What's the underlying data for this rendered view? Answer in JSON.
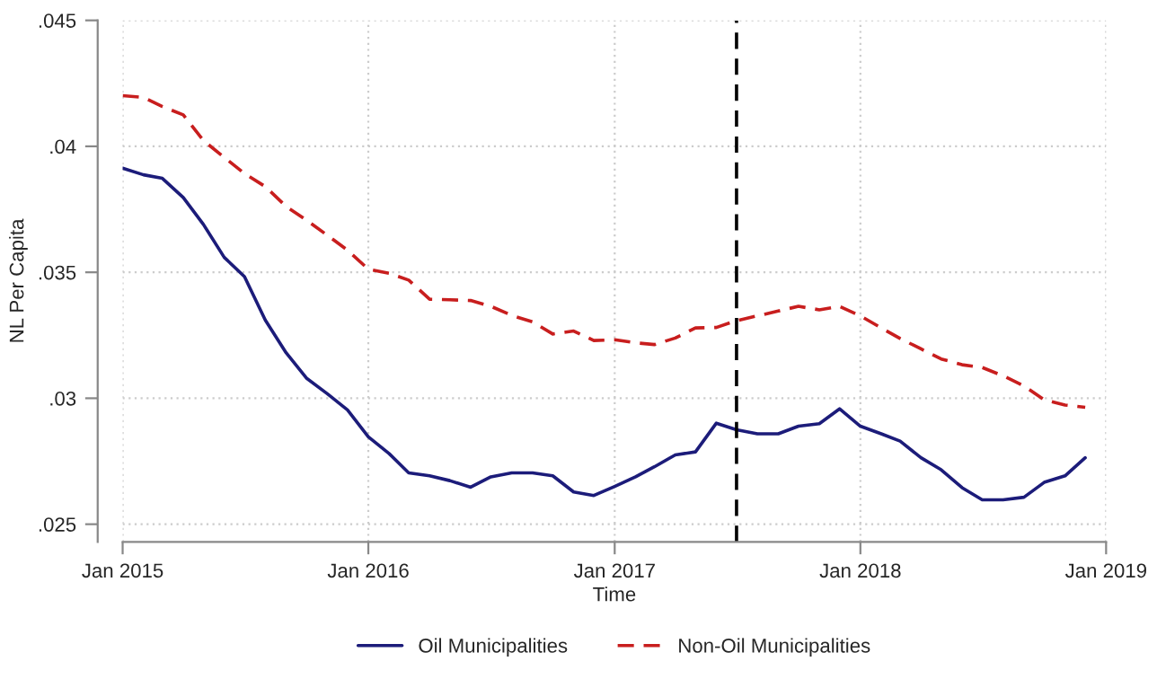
{
  "chart_data": {
    "type": "line",
    "xlabel": "Time",
    "ylabel": "NL Per Capita",
    "x": [
      "2015-01",
      "2015-02",
      "2015-03",
      "2015-04",
      "2015-05",
      "2015-06",
      "2015-07",
      "2015-08",
      "2015-09",
      "2015-10",
      "2015-11",
      "2015-12",
      "2016-01",
      "2016-02",
      "2016-03",
      "2016-04",
      "2016-05",
      "2016-06",
      "2016-07",
      "2016-08",
      "2016-09",
      "2016-10",
      "2016-11",
      "2016-12",
      "2017-01",
      "2017-02",
      "2017-03",
      "2017-04",
      "2017-05",
      "2017-06",
      "2017-07",
      "2017-08",
      "2017-09",
      "2017-10",
      "2017-11",
      "2017-12",
      "2018-01",
      "2018-02",
      "2018-03",
      "2018-04",
      "2018-05",
      "2018-06",
      "2018-07",
      "2018-08",
      "2018-09",
      "2018-10",
      "2018-11",
      "2018-12"
    ],
    "series": [
      {
        "name": "Oil Municipalities",
        "color": "#1c1c7a",
        "line_style": "solid",
        "values": [
          0.03913,
          0.03887,
          0.03873,
          0.03797,
          0.0369,
          0.03559,
          0.03483,
          0.0331,
          0.0318,
          0.0308,
          0.03018,
          0.02954,
          0.02847,
          0.0278,
          0.02704,
          0.02692,
          0.02673,
          0.02647,
          0.02688,
          0.02704,
          0.02704,
          0.02692,
          0.02628,
          0.02614,
          0.0265,
          0.02688,
          0.02728,
          0.02775,
          0.02787,
          0.02901,
          0.02875,
          0.02859,
          0.02859,
          0.02889,
          0.02899,
          0.02958,
          0.02889,
          0.02859,
          0.0283,
          0.02764,
          0.02716,
          0.02645,
          0.02597,
          0.02597,
          0.02607,
          0.02666,
          0.02692,
          0.02764
        ]
      },
      {
        "name": "Non-Oil Municipalities",
        "color": "#c81e1e",
        "line_style": "dashed",
        "values": [
          0.04201,
          0.04194,
          0.04158,
          0.04125,
          0.04023,
          0.03956,
          0.03892,
          0.0384,
          0.03761,
          0.03707,
          0.03647,
          0.03588,
          0.03512,
          0.03496,
          0.03469,
          0.03393,
          0.03391,
          0.03388,
          0.03365,
          0.03329,
          0.03303,
          0.03255,
          0.03267,
          0.03229,
          0.03232,
          0.0322,
          0.03213,
          0.03239,
          0.03279,
          0.03281,
          0.03308,
          0.03327,
          0.03346,
          0.03365,
          0.03351,
          0.03365,
          0.03327,
          0.03279,
          0.03237,
          0.03196,
          0.03156,
          0.03133,
          0.03122,
          0.03089,
          0.03049,
          0.02994,
          0.02973,
          0.02964
        ]
      }
    ],
    "xlim": [
      "2015-01",
      "2019-01"
    ],
    "xticks": [
      {
        "value": "2015-01",
        "label": "Jan 2015"
      },
      {
        "value": "2016-01",
        "label": "Jan 2016"
      },
      {
        "value": "2017-01",
        "label": "Jan 2017"
      },
      {
        "value": "2018-01",
        "label": "Jan 2018"
      },
      {
        "value": "2019-01",
        "label": "Jan 2019"
      }
    ],
    "ylim": [
      0.0243,
      0.045
    ],
    "yticks": [
      {
        "value": 0.025,
        "label": ".025"
      },
      {
        "value": 0.03,
        "label": ".03"
      },
      {
        "value": 0.035,
        "label": ".035"
      },
      {
        "value": 0.04,
        "label": ".04"
      },
      {
        "value": 0.045,
        "label": ".045"
      }
    ],
    "ref_lines": [
      {
        "axis": "x",
        "value": "2017-07",
        "color": "#000000",
        "line_style": "dashed"
      }
    ],
    "grid": true,
    "legend": "bottom",
    "marker": "none"
  }
}
